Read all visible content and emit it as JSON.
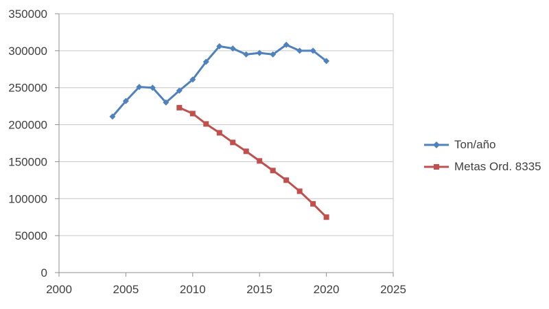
{
  "chart_data": {
    "type": "line",
    "title": "",
    "xlabel": "",
    "ylabel": "",
    "xlim": [
      2000,
      2025
    ],
    "ylim": [
      0,
      350000
    ],
    "xticks": [
      2000,
      2005,
      2010,
      2015,
      2020,
      2025
    ],
    "yticks": [
      0,
      50000,
      100000,
      150000,
      200000,
      250000,
      300000,
      350000
    ],
    "grid": true,
    "legend_position": "right",
    "series": [
      {
        "name": "Ton/año",
        "color": "#4F81BD",
        "marker": "diamond",
        "x": [
          2004,
          2005,
          2006,
          2007,
          2008,
          2009,
          2010,
          2011,
          2012,
          2013,
          2014,
          2015,
          2016,
          2017,
          2018,
          2019,
          2020
        ],
        "values": [
          211000,
          232000,
          251000,
          250000,
          230000,
          246000,
          261000,
          285000,
          306000,
          303000,
          295000,
          297000,
          295000,
          308000,
          300000,
          300000,
          286000
        ]
      },
      {
        "name": "Metas Ord. 8335",
        "color": "#C0504D",
        "marker": "square",
        "x": [
          2009,
          2010,
          2011,
          2012,
          2013,
          2014,
          2015,
          2016,
          2017,
          2018,
          2019,
          2020
        ],
        "values": [
          223000,
          215000,
          201000,
          189000,
          176000,
          164000,
          151000,
          138000,
          125000,
          110000,
          93000,
          75000
        ]
      }
    ],
    "colors": {
      "gridline": "#C6C6C6",
      "axis": "#8F8F8F",
      "tick_label": "#404040",
      "background": "#FFFFFF"
    }
  }
}
